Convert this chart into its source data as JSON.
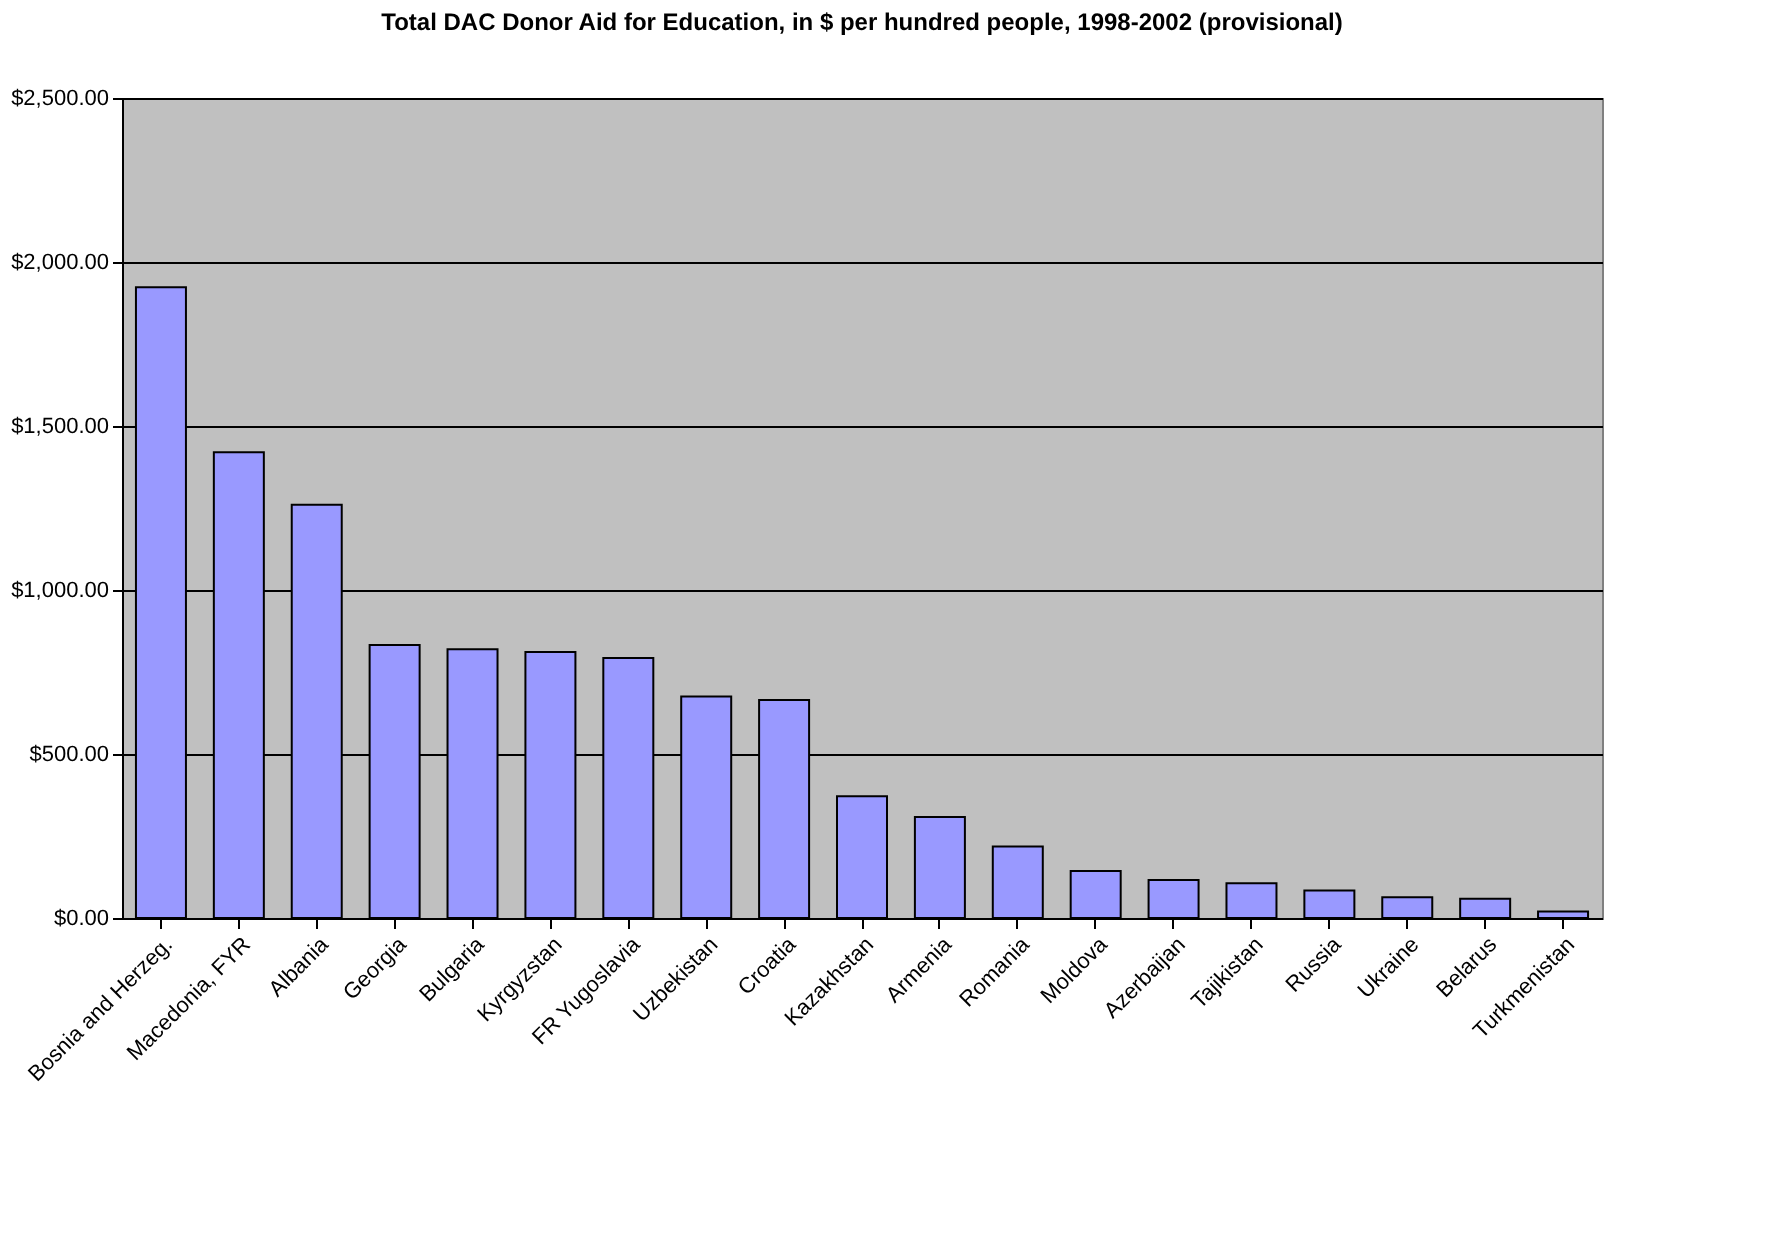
{
  "chart_data": {
    "type": "bar",
    "title": "Total DAC Donor Aid for Education, in $ per hundred people, 1998-2002 (provisional)",
    "categories": [
      "Bosnia and Herzeg.",
      "Macedonia, FYR",
      "Albania",
      "Georgia",
      "Bulgaria",
      "Kyrgyzstan",
      "FR Yugoslavia",
      "Uzbekistan",
      "Croatia",
      "Kazakhstan",
      "Armenia",
      "Romania",
      "Moldova",
      "Azerbaijan",
      "Tajikistan",
      "Russia",
      "Ukraine",
      "Belarus",
      "Turkmenistan"
    ],
    "values": [
      1923,
      1420,
      1260,
      832,
      819,
      811,
      793,
      675,
      665,
      371,
      308,
      218,
      143,
      116,
      106,
      84,
      63,
      59,
      20
    ],
    "color": "#9999ff",
    "ylim": [
      0,
      2500
    ],
    "yticks": [
      {
        "value": 0,
        "label": "$0.00"
      },
      {
        "value": 500,
        "label": "$500.00"
      },
      {
        "value": 1000,
        "label": "$1,000.00"
      },
      {
        "value": 1500,
        "label": "$1,500.00"
      },
      {
        "value": 2000,
        "label": "$2,000.00"
      },
      {
        "value": 2500,
        "label": "$2,500.00"
      }
    ],
    "grid": "y"
  }
}
